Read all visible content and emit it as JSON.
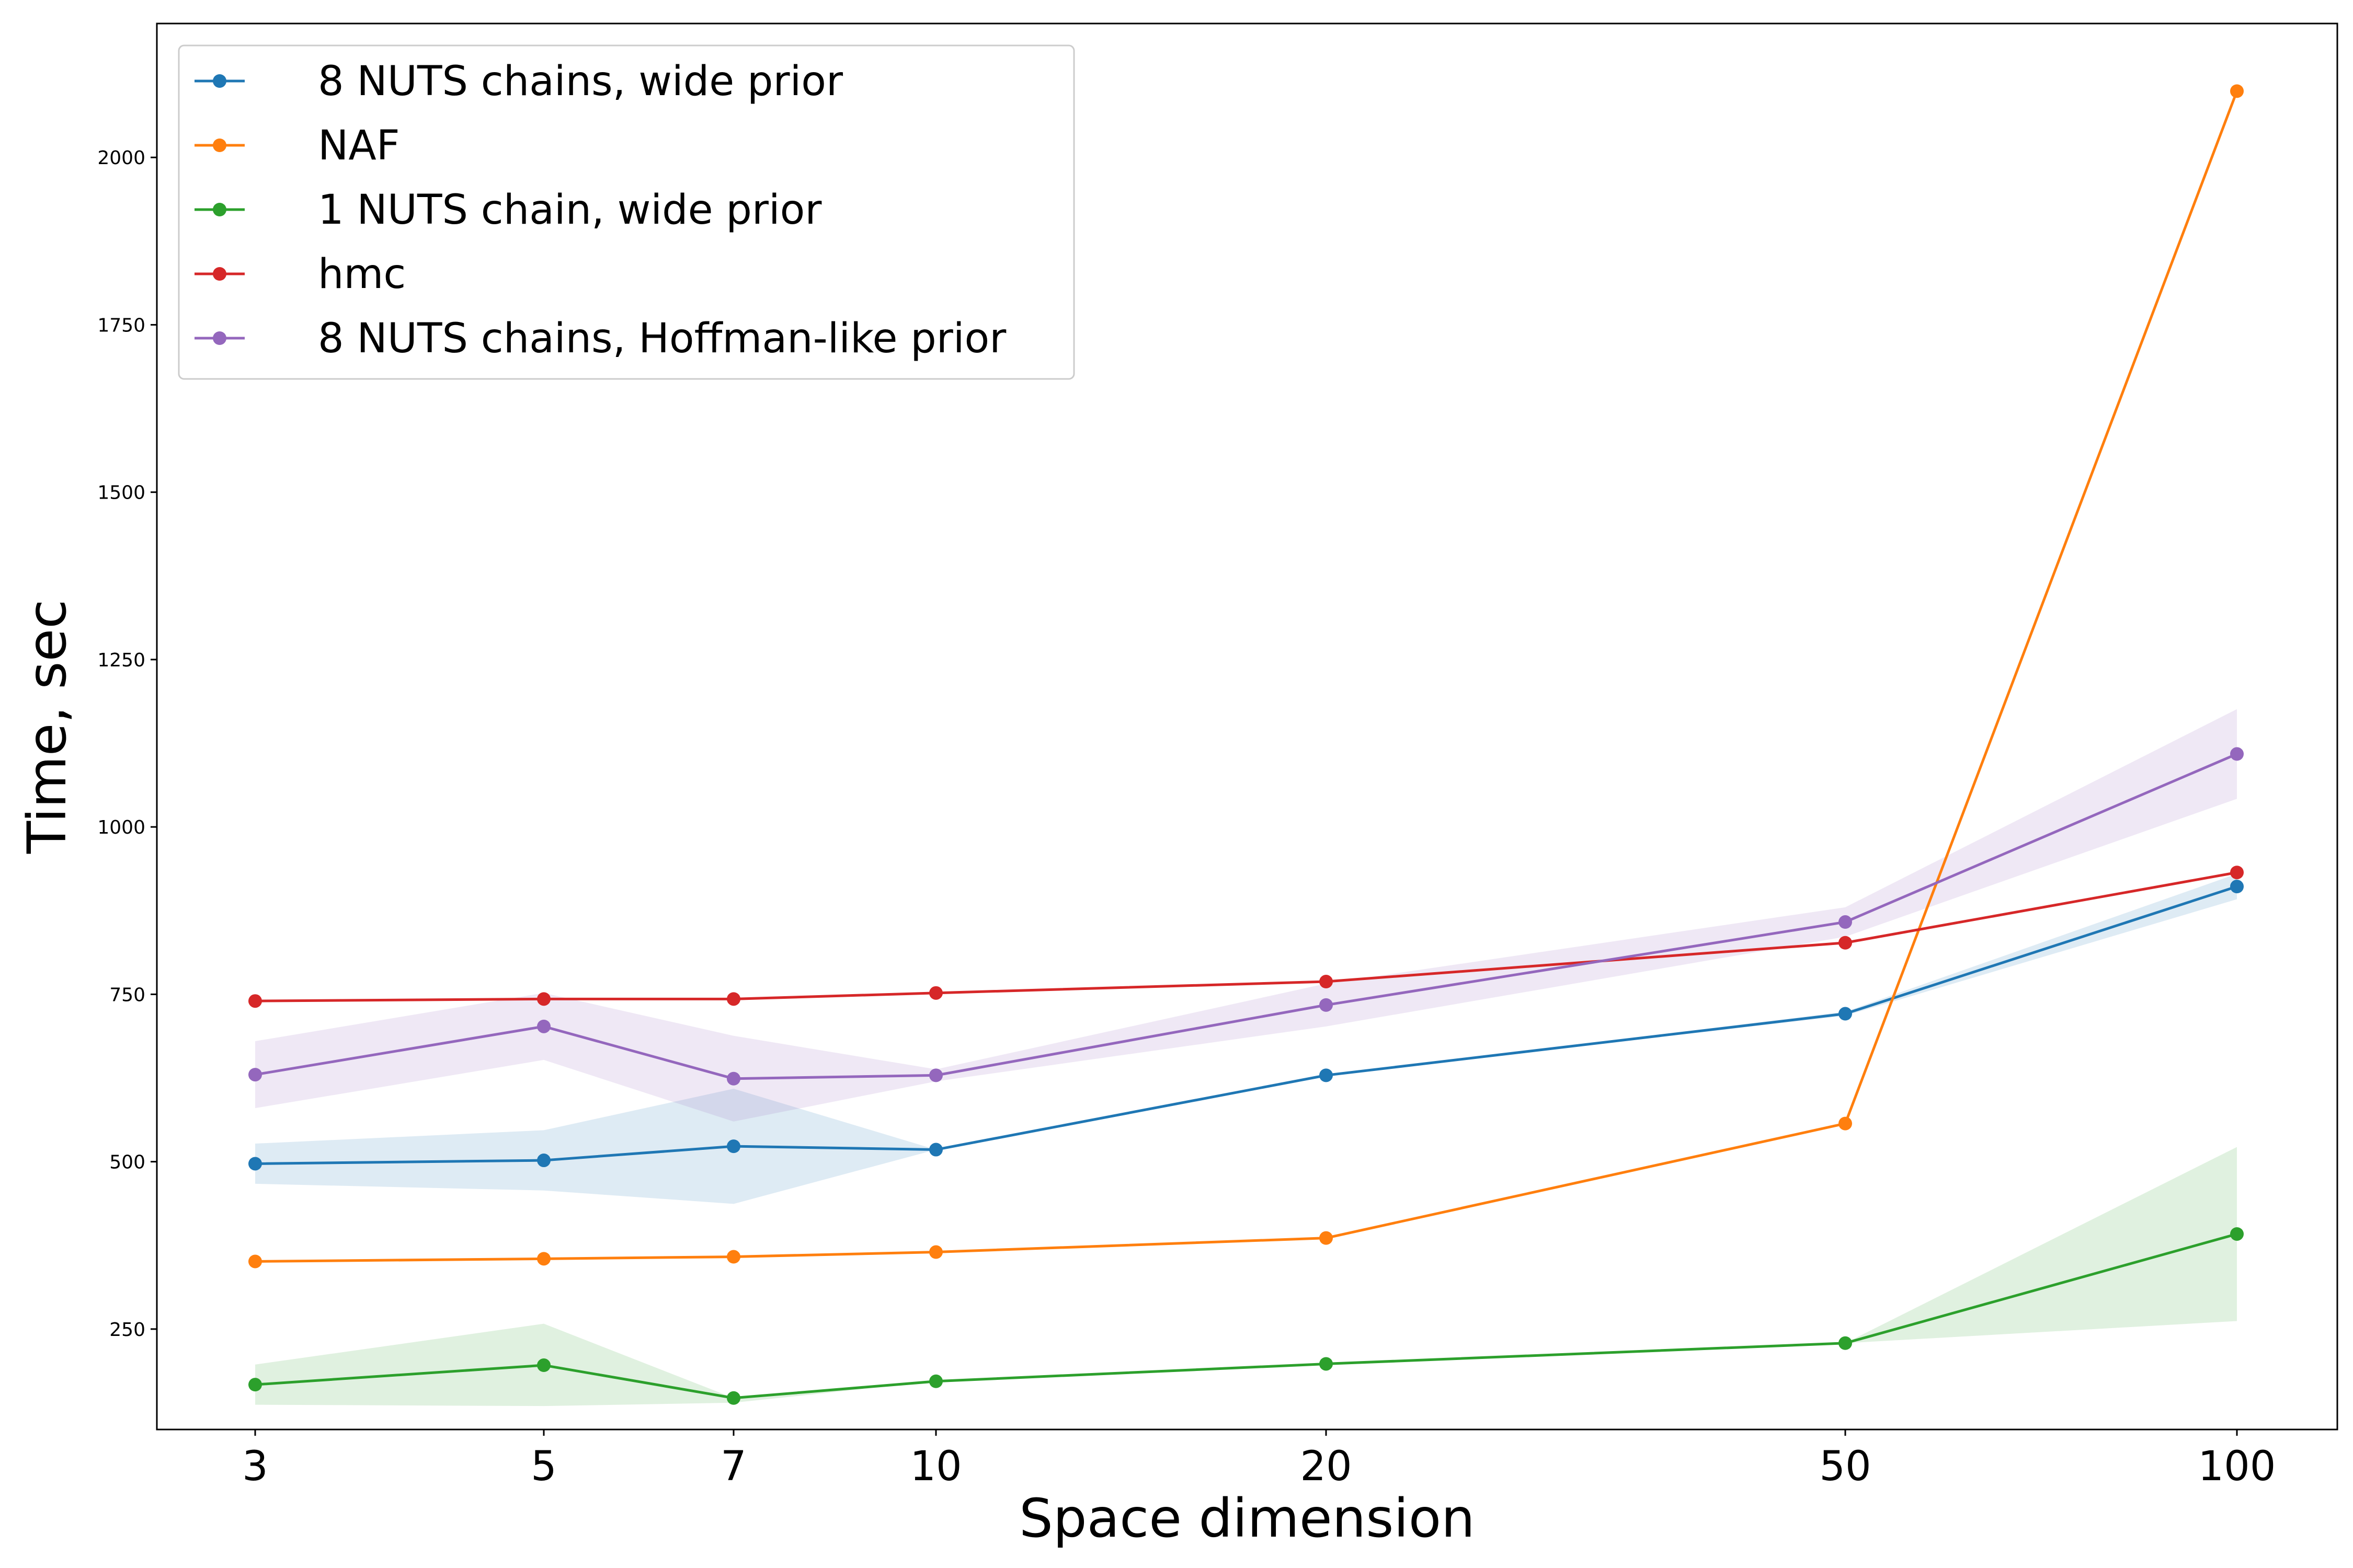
{
  "chart_data": {
    "type": "line",
    "title": "",
    "xlabel": "Space dimension",
    "ylabel": "Time, sec",
    "x_scale": "categorical-log",
    "x": [
      3,
      5,
      7,
      10,
      20,
      50,
      100
    ],
    "x_tick_labels": [
      "3",
      "5",
      "7",
      "10",
      "20",
      "50",
      "100"
    ],
    "ylim": [
      100,
      2200
    ],
    "y_ticks": [
      250,
      500,
      750,
      1000,
      1250,
      1500,
      1750,
      2000
    ],
    "y_tick_labels": [
      "250",
      "500",
      "750",
      "1000",
      "1250",
      "1500",
      "1750",
      "2000"
    ],
    "grid": false,
    "legend_position": "upper-left",
    "series": [
      {
        "name": "8 NUTS chains, wide prior",
        "color": "#1f77b4",
        "values": [
          497,
          502,
          523,
          518,
          629,
          721,
          911
        ],
        "band_low": [
          467,
          457,
          437,
          518,
          629,
          718,
          892
        ],
        "band_high": [
          527,
          547,
          609,
          518,
          629,
          724,
          930
        ]
      },
      {
        "name": "NAF",
        "color": "#ff7f0e",
        "values": [
          351,
          355,
          358,
          365,
          386,
          557,
          2099
        ],
        "band_low": null,
        "band_high": null
      },
      {
        "name": "1 NUTS chain, wide prior",
        "color": "#2ca02c",
        "values": [
          167,
          196,
          147,
          172,
          198,
          229,
          392
        ],
        "band_low": [
          137,
          135,
          140,
          172,
          198,
          229,
          262
        ],
        "band_high": [
          197,
          258,
          147,
          172,
          198,
          229,
          522
        ]
      },
      {
        "name": "hmc",
        "color": "#d62728",
        "values": [
          740,
          743,
          743,
          752,
          769,
          827,
          932
        ],
        "band_low": null,
        "band_high": null
      },
      {
        "name": "8 NUTS chains, Hoffman-like prior",
        "color": "#9467bd",
        "values": [
          630,
          702,
          624,
          629,
          734,
          858,
          1109
        ],
        "band_low": [
          580,
          652,
          560,
          620,
          702,
          836,
          1042
        ],
        "band_high": [
          680,
          752,
          688,
          638,
          766,
          880,
          1176
        ]
      }
    ]
  }
}
